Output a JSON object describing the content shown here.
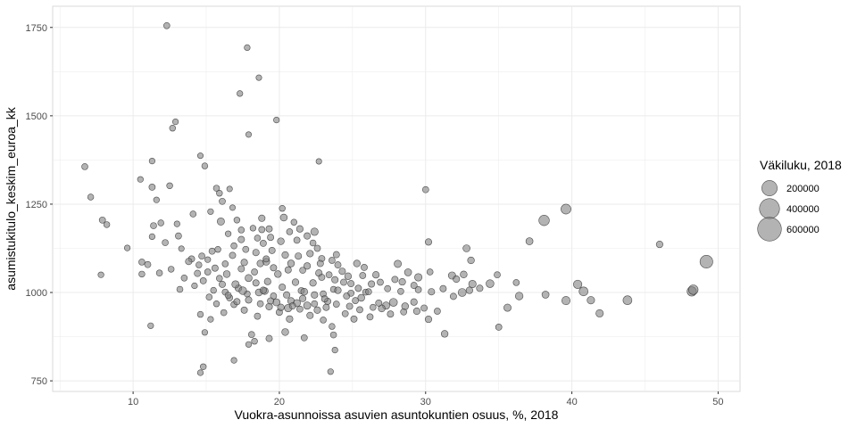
{
  "chart_data": {
    "type": "scatter",
    "title": "",
    "xlabel": "Vuokra-asunnoissa asuvien asuntokuntien osuus, %, 2018",
    "ylabel": "asumistukitulo_keskim_euroa_kk",
    "xlim": [
      4.5,
      51.5
    ],
    "ylim": [
      720,
      1810
    ],
    "x_ticks": [
      10,
      20,
      30,
      40,
      50
    ],
    "y_ticks": [
      750,
      1000,
      1250,
      1500,
      1750
    ],
    "x_tick_labels": [
      "10",
      "20",
      "30",
      "40",
      "50"
    ],
    "y_tick_labels": [
      "750",
      "1000",
      "1250",
      "1500",
      "1750"
    ],
    "grid": true,
    "legend_position": "right",
    "size_legend": {
      "title": "Väkiluku, 2018",
      "items": [
        {
          "label": "200000",
          "value": 200000
        },
        {
          "label": "400000",
          "value": 400000
        },
        {
          "label": "600000",
          "value": 600000
        }
      ]
    },
    "colors": {
      "point_fill": "#808080",
      "point_stroke": "#333333",
      "grid": "#ebebeb",
      "panel_border": "#d9d9d9"
    },
    "points": [
      [
        12.3,
        1755,
        8000
      ],
      [
        17.8,
        1693,
        6000
      ],
      [
        18.6,
        1608,
        5000
      ],
      [
        17.3,
        1563,
        6000
      ],
      [
        12.9,
        1483,
        6000
      ],
      [
        19.8,
        1488,
        6000
      ],
      [
        12.7,
        1465,
        7000
      ],
      [
        17.9,
        1447,
        5000
      ],
      [
        6.7,
        1356,
        8000
      ],
      [
        11.3,
        1372,
        6000
      ],
      [
        14.9,
        1358,
        7000
      ],
      [
        14.6,
        1387,
        5000
      ],
      [
        22.7,
        1371,
        5000
      ],
      [
        10.5,
        1320,
        6000
      ],
      [
        11.3,
        1298,
        9000
      ],
      [
        12.5,
        1302,
        7000
      ],
      [
        16.6,
        1293,
        5000
      ],
      [
        15.7,
        1295,
        8000
      ],
      [
        15.9,
        1281,
        7000
      ],
      [
        7.1,
        1270,
        7000
      ],
      [
        11.6,
        1262,
        6000
      ],
      [
        16.1,
        1258,
        9000
      ],
      [
        15.3,
        1229,
        6000
      ],
      [
        14.1,
        1222,
        8000
      ],
      [
        20.2,
        1238,
        7000
      ],
      [
        16.8,
        1240,
        5000
      ],
      [
        7.9,
        1205,
        9000
      ],
      [
        8.2,
        1192,
        7000
      ],
      [
        11.9,
        1197,
        7000
      ],
      [
        13,
        1194,
        6000
      ],
      [
        11.4,
        1189,
        8000
      ],
      [
        16,
        1201,
        18000
      ],
      [
        17.1,
        1205,
        7000
      ],
      [
        18.8,
        1210,
        11000
      ],
      [
        20.3,
        1212,
        15000
      ],
      [
        21,
        1199,
        7000
      ],
      [
        18.2,
        1182,
        6000
      ],
      [
        17.4,
        1177,
        8000
      ],
      [
        18.8,
        1178,
        9000
      ],
      [
        21.4,
        1180,
        12000
      ],
      [
        22.4,
        1172,
        20000
      ],
      [
        30,
        1291,
        9000
      ],
      [
        9.6,
        1126,
        6000
      ],
      [
        11.3,
        1158,
        6000
      ],
      [
        13.3,
        1124,
        5000
      ],
      [
        16.5,
        1166,
        6000
      ],
      [
        17.4,
        1150,
        11000
      ],
      [
        18.5,
        1154,
        8000
      ],
      [
        19.4,
        1156,
        10000
      ],
      [
        20.1,
        1145,
        13000
      ],
      [
        21.2,
        1148,
        9000
      ],
      [
        22.3,
        1140,
        8000
      ],
      [
        10.6,
        1086,
        8000
      ],
      [
        11,
        1079,
        9000
      ],
      [
        11.8,
        1055,
        8000
      ],
      [
        10.6,
        1052,
        7000
      ],
      [
        7.8,
        1050,
        6000
      ],
      [
        12.6,
        1066,
        7000
      ],
      [
        13.5,
        1041,
        8000
      ],
      [
        14,
        1095,
        9000
      ],
      [
        14.5,
        1078,
        7000
      ],
      [
        15.1,
        1093,
        6000
      ],
      [
        15.6,
        1069,
        10000
      ],
      [
        16.3,
        1081,
        8000
      ],
      [
        17.6,
        1085,
        12000
      ],
      [
        18.3,
        1058,
        9000
      ],
      [
        19.1,
        1087,
        16000
      ],
      [
        19.6,
        1070,
        10000
      ],
      [
        20.8,
        1082,
        14000
      ],
      [
        21.6,
        1063,
        8000
      ],
      [
        22.7,
        1055,
        12000
      ],
      [
        23.4,
        1050,
        9000
      ],
      [
        24,
        1078,
        10000
      ],
      [
        25.3,
        1082,
        13000
      ],
      [
        25.8,
        1071,
        9000
      ],
      [
        26.6,
        1050,
        12000
      ],
      [
        28.1,
        1081,
        18000
      ],
      [
        28.8,
        1057,
        16000
      ],
      [
        29.5,
        1043,
        20000
      ],
      [
        30.2,
        1143,
        11000
      ],
      [
        30.3,
        1058,
        8000
      ],
      [
        31.8,
        1048,
        18000
      ],
      [
        32.6,
        1051,
        14000
      ],
      [
        32.8,
        1125,
        16000
      ],
      [
        33.1,
        1091,
        13000
      ],
      [
        37.1,
        1145,
        16000
      ],
      [
        38.1,
        1204,
        65000
      ],
      [
        39.6,
        1236,
        55000
      ],
      [
        46,
        1136,
        12000
      ],
      [
        13.2,
        1009,
        8000
      ],
      [
        14.2,
        1019,
        6000
      ],
      [
        14.8,
        1033,
        9000
      ],
      [
        15.5,
        1006,
        7000
      ],
      [
        16.1,
        1023,
        10000
      ],
      [
        16.6,
        985,
        9000
      ],
      [
        17.2,
        1012,
        12000
      ],
      [
        17.8,
        996,
        8000
      ],
      [
        18.4,
        1027,
        10000
      ],
      [
        19,
        1004,
        14000
      ],
      [
        19.6,
        990,
        9000
      ],
      [
        20.2,
        1015,
        11000
      ],
      [
        20.8,
        976,
        13000
      ],
      [
        21.5,
        1005,
        10000
      ],
      [
        22.3,
        1027,
        12000
      ],
      [
        23,
        996,
        9000
      ],
      [
        23.7,
        1009,
        8000
      ],
      [
        24.6,
        990,
        10000
      ],
      [
        25.2,
        977,
        9000
      ],
      [
        25.9,
        1001,
        8000
      ],
      [
        27.3,
        963,
        18000
      ],
      [
        27.8,
        972,
        25000
      ],
      [
        28.6,
        961,
        14000
      ],
      [
        29.2,
        973,
        12000
      ],
      [
        29.9,
        956,
        10000
      ],
      [
        32.5,
        1000,
        26000
      ],
      [
        33.2,
        1024,
        20000
      ],
      [
        34.4,
        1025,
        24000
      ],
      [
        35.6,
        957,
        18000
      ],
      [
        36.4,
        990,
        22000
      ],
      [
        38.2,
        994,
        16000
      ],
      [
        39.6,
        977,
        30000
      ],
      [
        40.4,
        1023,
        32000
      ],
      [
        40.8,
        1003,
        38000
      ],
      [
        41.3,
        978,
        20000
      ],
      [
        41.9,
        941,
        20000
      ],
      [
        43.8,
        978,
        38000
      ],
      [
        48.2,
        1003,
        45000
      ],
      [
        48.3,
        1008,
        50000
      ],
      [
        49.2,
        1087,
        120000
      ],
      [
        14.6,
        938,
        7000
      ],
      [
        15.3,
        924,
        6000
      ],
      [
        16.2,
        943,
        8000
      ],
      [
        16.9,
        966,
        9000
      ],
      [
        17.6,
        950,
        10000
      ],
      [
        18.5,
        933,
        9000
      ],
      [
        19.3,
        960,
        12000
      ],
      [
        20,
        944,
        10000
      ],
      [
        20.7,
        925,
        12000
      ],
      [
        21.4,
        953,
        9000
      ],
      [
        22.1,
        935,
        11000
      ],
      [
        23,
        922,
        8000
      ],
      [
        23.6,
        904,
        7000
      ],
      [
        24.5,
        940,
        9000
      ],
      [
        25.1,
        925,
        10000
      ],
      [
        26.2,
        931,
        9000
      ],
      [
        27,
        955,
        14000
      ],
      [
        29.4,
        947,
        12000
      ],
      [
        30.2,
        924,
        12000
      ],
      [
        30.8,
        947,
        9000
      ],
      [
        31.3,
        883,
        13000
      ],
      [
        35,
        902,
        9000
      ],
      [
        11.2,
        906,
        6000
      ],
      [
        14.9,
        887,
        6000
      ],
      [
        18.1,
        881,
        9000
      ],
      [
        19.3,
        870,
        10000
      ],
      [
        20.4,
        888,
        14000
      ],
      [
        21.7,
        872,
        9000
      ],
      [
        23.7,
        880,
        8000
      ],
      [
        18.3,
        862,
        7000
      ],
      [
        17.9,
        853,
        6000
      ],
      [
        23.8,
        837,
        6000
      ],
      [
        16.9,
        808,
        6000
      ],
      [
        14.8,
        790,
        7000
      ],
      [
        14.6,
        773,
        6000
      ],
      [
        23.5,
        776,
        6000
      ],
      [
        17.5,
        1005,
        22000
      ],
      [
        17,
        1023,
        18000
      ],
      [
        16.4,
        1052,
        14000
      ],
      [
        17.9,
        1041,
        16000
      ],
      [
        18.6,
        1000,
        15000
      ],
      [
        19.2,
        1031,
        12000
      ],
      [
        19.9,
        1052,
        13000
      ],
      [
        20.5,
        993,
        11000
      ],
      [
        21.1,
        1029,
        12000
      ],
      [
        21.7,
        1002,
        14000
      ],
      [
        22.4,
        993,
        12000
      ],
      [
        22.9,
        1043,
        10000
      ],
      [
        23.3,
        975,
        11000
      ],
      [
        24,
        1006,
        12000
      ],
      [
        24.4,
        1029,
        10000
      ],
      [
        24.9,
        998,
        9000
      ],
      [
        25.6,
        985,
        14000
      ],
      [
        26.3,
        1024,
        11000
      ],
      [
        26.8,
        970,
        10000
      ],
      [
        20.6,
        956,
        20000
      ],
      [
        21.2,
        970,
        16000
      ],
      [
        21.9,
        963,
        18000
      ],
      [
        22.6,
        950,
        12000
      ],
      [
        23.2,
        958,
        10000
      ],
      [
        19.8,
        972,
        16000
      ],
      [
        18.9,
        1006,
        12000
      ],
      [
        16.3,
        1001,
        8000
      ],
      [
        15.9,
        1040,
        8000
      ],
      [
        15.1,
        1058,
        9000
      ],
      [
        14.4,
        1054,
        10000
      ],
      [
        13.8,
        1088,
        11000
      ],
      [
        15.4,
        1117,
        9000
      ],
      [
        16.8,
        1105,
        10000
      ],
      [
        17.7,
        1122,
        9000
      ],
      [
        18.4,
        1113,
        11000
      ],
      [
        19.5,
        1119,
        10000
      ],
      [
        20.4,
        1106,
        12000
      ],
      [
        21.3,
        1103,
        11000
      ],
      [
        22.1,
        1110,
        12000
      ],
      [
        22.9,
        1096,
        10000
      ],
      [
        23.6,
        1091,
        9000
      ],
      [
        24.3,
        1060,
        11000
      ],
      [
        24.9,
        1025,
        10000
      ],
      [
        25.7,
        1048,
        9000
      ],
      [
        26.1,
        1002,
        8000
      ],
      [
        27.4,
        1011,
        9000
      ],
      [
        28.3,
        1003,
        8000
      ],
      [
        29.2,
        1020,
        10000
      ],
      [
        31.2,
        1011,
        10000
      ],
      [
        32.1,
        1038,
        12000
      ],
      [
        33.7,
        1012,
        11000
      ],
      [
        34.9,
        1050,
        9000
      ],
      [
        36.2,
        1028,
        8000
      ],
      [
        19.3,
        1180,
        10000
      ],
      [
        18.9,
        1139,
        9000
      ],
      [
        20.7,
        1172,
        8000
      ],
      [
        21.9,
        1160,
        11000
      ],
      [
        22.6,
        1125,
        9000
      ],
      [
        23.9,
        1107,
        10000
      ],
      [
        16.9,
        1132,
        8000
      ],
      [
        14.7,
        1103,
        9000
      ],
      [
        15.8,
        1122,
        7000
      ],
      [
        12.2,
        1141,
        8000
      ],
      [
        13.1,
        1160,
        9000
      ],
      [
        17.4,
        1067,
        10000
      ],
      [
        18.7,
        1082,
        12000
      ],
      [
        19.1,
        1095,
        9000
      ],
      [
        20.6,
        1064,
        10000
      ],
      [
        21.9,
        1075,
        12000
      ],
      [
        22.8,
        1082,
        10000
      ],
      [
        23.8,
        1036,
        11000
      ],
      [
        24.7,
        1046,
        13000
      ],
      [
        25.4,
        1012,
        10000
      ],
      [
        26.9,
        1029,
        9000
      ],
      [
        27.9,
        1037,
        10000
      ],
      [
        28.4,
        1030,
        12000
      ],
      [
        29.5,
        1008,
        9000
      ],
      [
        30.4,
        1002,
        11000
      ],
      [
        31.9,
        989,
        10000
      ],
      [
        33,
        1006,
        12000
      ],
      [
        15.2,
        987,
        8000
      ],
      [
        15.7,
        968,
        7000
      ],
      [
        16.5,
        992,
        9000
      ],
      [
        17.1,
        974,
        10000
      ],
      [
        17.9,
        979,
        11000
      ],
      [
        18.7,
        968,
        9000
      ],
      [
        19.4,
        976,
        10000
      ],
      [
        20.1,
        958,
        12000
      ],
      [
        20.9,
        962,
        10000
      ],
      [
        21.6,
        983,
        11000
      ],
      [
        22.4,
        968,
        9000
      ],
      [
        23.1,
        982,
        10000
      ],
      [
        23.9,
        967,
        9000
      ],
      [
        24.8,
        961,
        10000
      ],
      [
        25.5,
        951,
        9000
      ],
      [
        26.4,
        958,
        8000
      ],
      [
        27.6,
        939,
        10000
      ],
      [
        28.5,
        945,
        9000
      ]
    ]
  }
}
